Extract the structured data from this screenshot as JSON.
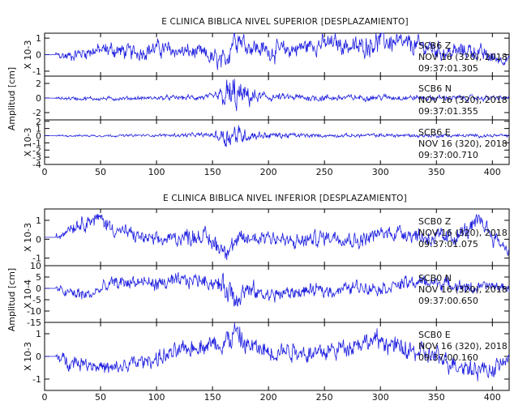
{
  "chart_data": [
    {
      "type": "line",
      "title": "E CLINICA BIBLICA NIVEL SUPERIOR [DESPLAZAMIENTO]",
      "ylabel": "Amplitud [cm]",
      "xlim": [
        0,
        415
      ],
      "xticks": [
        0,
        50,
        100,
        150,
        200,
        250,
        300,
        350,
        400
      ],
      "line_color": "#1f1fe0",
      "panels": [
        {
          "station": "SCB6",
          "component": "Z",
          "scale_label": "X 10-3",
          "ylim": [
            -1.3,
            1.3
          ],
          "yticks": [
            1,
            0,
            -1
          ],
          "date": "NOV 16 (320), 2018",
          "time": "09:37:01.305",
          "envelope": [
            [
              0,
              0.15
            ],
            [
              20,
              0.35
            ],
            [
              60,
              0.55
            ],
            [
              100,
              0.55
            ],
            [
              140,
              0.5
            ],
            [
              160,
              0.8
            ],
            [
              170,
              0.9
            ],
            [
              180,
              0.65
            ],
            [
              250,
              0.6
            ],
            [
              300,
              0.75
            ],
            [
              350,
              0.6
            ],
            [
              400,
              0.5
            ],
            [
              415,
              0.3
            ]
          ],
          "x": [
            0,
            10,
            20,
            40,
            60,
            80,
            100,
            120,
            140,
            160,
            165,
            170,
            180,
            200,
            220,
            240,
            260,
            280,
            300,
            320,
            340,
            360,
            380,
            400,
            415
          ],
          "y": [
            0,
            0,
            -0.1,
            0.2,
            0.3,
            0.1,
            0.4,
            0.2,
            0.1,
            -0.6,
            0.3,
            1.3,
            0.6,
            0.2,
            0.3,
            0.6,
            0.7,
            0.4,
            0.9,
            0.6,
            0.5,
            0.1,
            0.3,
            -0.2,
            -0.3
          ]
        },
        {
          "station": "SCB6",
          "component": "N",
          "scale_label": "",
          "ylim": [
            -3,
            3
          ],
          "yticks": [
            2,
            0,
            -2
          ],
          "date": "NOV 16 (320), 2018",
          "time": "09:37:01.355",
          "envelope": [
            [
              0,
              0.05
            ],
            [
              20,
              0.3
            ],
            [
              100,
              0.3
            ],
            [
              150,
              0.5
            ],
            [
              158,
              1.5
            ],
            [
              165,
              3
            ],
            [
              172,
              2.6
            ],
            [
              185,
              1.2
            ],
            [
              200,
              0.6
            ],
            [
              300,
              0.45
            ],
            [
              400,
              0.4
            ],
            [
              415,
              0.3
            ]
          ],
          "x": [
            0,
            50,
            100,
            150,
            165,
            200,
            250,
            300,
            350,
            400,
            415
          ],
          "y": [
            0,
            -0.1,
            0,
            0.1,
            0.2,
            0.1,
            0,
            0.1,
            0,
            0,
            0
          ]
        },
        {
          "station": "SCB6",
          "component": "E",
          "scale_label": "X 10-3",
          "ylim": [
            -4,
            2.2
          ],
          "yticks": [
            2,
            1,
            0,
            -1,
            -2,
            -3,
            -4
          ],
          "date": "NOV 16 (320), 2018",
          "time": "09:37:00.710",
          "envelope": [
            [
              0,
              0.05
            ],
            [
              20,
              0.15
            ],
            [
              100,
              0.2
            ],
            [
              150,
              0.4
            ],
            [
              160,
              2.0
            ],
            [
              168,
              1.8
            ],
            [
              175,
              1.3
            ],
            [
              190,
              0.6
            ],
            [
              250,
              0.25
            ],
            [
              300,
              0.3
            ],
            [
              400,
              0.25
            ],
            [
              415,
              0.2
            ]
          ],
          "x": [
            0,
            50,
            100,
            150,
            200,
            250,
            300,
            350,
            400,
            415
          ],
          "y": [
            0,
            0,
            0.05,
            0.1,
            0.05,
            0,
            0.05,
            0,
            0,
            0
          ]
        }
      ]
    },
    {
      "type": "line",
      "title": "E CLINICA BIBLICA NIVEL INFERIOR [DESPLAZAMIENTO]",
      "ylabel": "Amplitud [cm]",
      "xlim": [
        0,
        415
      ],
      "xticks": [
        0,
        50,
        100,
        150,
        200,
        250,
        300,
        350,
        400
      ],
      "line_color": "#1f1fe0",
      "panels": [
        {
          "station": "SCB0",
          "component": "Z",
          "scale_label": "X 10-3",
          "ylim": [
            -1.4,
            1.6
          ],
          "yticks": [
            1,
            0,
            -1
          ],
          "date": "NOV 16 (320), 2018",
          "time": "09:37:01.075",
          "envelope": [
            [
              0,
              0.1
            ],
            [
              20,
              0.4
            ],
            [
              60,
              0.45
            ],
            [
              100,
              0.4
            ],
            [
              160,
              0.6
            ],
            [
              200,
              0.5
            ],
            [
              300,
              0.45
            ],
            [
              350,
              0.55
            ],
            [
              400,
              0.5
            ],
            [
              415,
              0.3
            ]
          ],
          "x": [
            0,
            12,
            20,
            30,
            40,
            50,
            60,
            80,
            100,
            120,
            140,
            160,
            180,
            200,
            220,
            240,
            260,
            280,
            300,
            320,
            340,
            360,
            380,
            390,
            400,
            415
          ],
          "y": [
            0.1,
            0.1,
            0.6,
            0.8,
            1.0,
            1.1,
            0.6,
            0.2,
            -0.1,
            0.1,
            0.2,
            -0.5,
            0,
            0.2,
            -0.2,
            0,
            0.2,
            -0.1,
            0.3,
            0.4,
            0.1,
            0,
            0.5,
            1.0,
            0.2,
            -0.6
          ]
        },
        {
          "station": "SCB0",
          "component": "N",
          "scale_label": "X 10-4",
          "ylim": [
            -15,
            10
          ],
          "yticks": [
            10,
            5,
            0,
            -5,
            -10,
            -15
          ],
          "date": "NOV 16 (320), 2018",
          "time": "09:37:00.650",
          "envelope": [
            [
              0,
              0.3
            ],
            [
              20,
              3.0
            ],
            [
              60,
              3.5
            ],
            [
              100,
              3.5
            ],
            [
              140,
              3.5
            ],
            [
              155,
              4
            ],
            [
              162,
              6
            ],
            [
              170,
              8
            ],
            [
              178,
              5
            ],
            [
              200,
              3.5
            ],
            [
              260,
              3.2
            ],
            [
              320,
              3.2
            ],
            [
              380,
              3
            ],
            [
              415,
              2
            ]
          ],
          "x": [
            0,
            10,
            20,
            40,
            60,
            80,
            100,
            120,
            140,
            160,
            170,
            180,
            200,
            220,
            240,
            260,
            280,
            300,
            320,
            340,
            360,
            380,
            400,
            415
          ],
          "y": [
            0,
            0,
            -2,
            -3,
            2,
            3,
            2,
            3,
            4,
            1,
            -3,
            -1,
            -3,
            -2,
            -1,
            -1,
            1,
            0,
            2,
            3,
            2,
            0,
            1,
            0
          ]
        },
        {
          "station": "SCB0",
          "component": "E",
          "scale_label": "X 10-3",
          "ylim": [
            -1.5,
            1.5
          ],
          "yticks": [
            1,
            0,
            -1
          ],
          "date": "NOV 16 (320), 2018",
          "time": "09:37:00.160",
          "envelope": [
            [
              0,
              0.1
            ],
            [
              20,
              0.35
            ],
            [
              100,
              0.4
            ],
            [
              150,
              0.45
            ],
            [
              160,
              0.6
            ],
            [
              170,
              0.75
            ],
            [
              180,
              0.5
            ],
            [
              250,
              0.45
            ],
            [
              350,
              0.5
            ],
            [
              400,
              0.45
            ],
            [
              415,
              0.3
            ]
          ],
          "x": [
            0,
            10,
            20,
            40,
            60,
            80,
            100,
            120,
            140,
            160,
            170,
            180,
            200,
            220,
            240,
            260,
            280,
            300,
            320,
            340,
            360,
            380,
            400,
            415
          ],
          "y": [
            0,
            0,
            -0.2,
            -0.3,
            -0.6,
            -0.3,
            -0.1,
            0.2,
            0.5,
            0.6,
            1.0,
            0.5,
            0.2,
            0.3,
            0.1,
            0.3,
            0.6,
            0.7,
            0.3,
            0.1,
            -0.2,
            -0.5,
            -0.6,
            -0.1
          ]
        }
      ]
    }
  ]
}
